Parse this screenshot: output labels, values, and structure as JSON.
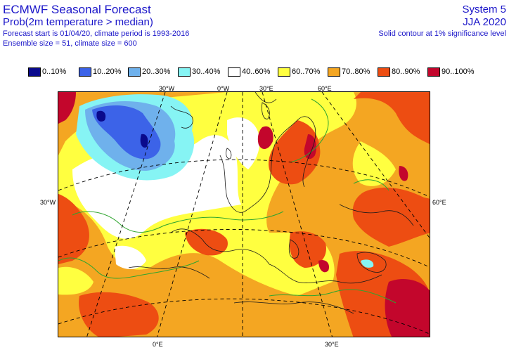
{
  "header": {
    "title": "ECMWF Seasonal Forecast",
    "subtitle": "Prob(2m temperature > median)",
    "forecast_info": "Forecast start is 01/04/20, climate period is 1993-2016",
    "ensemble_info": "Ensemble size = 51, climate size = 600",
    "system": "System 5",
    "season": "JJA 2020",
    "significance_note": "Solid contour at 1% significance level"
  },
  "legend": [
    {
      "label": "0..10%",
      "color": "#0a0a8c"
    },
    {
      "label": "10..20%",
      "color": "#3c63e8"
    },
    {
      "label": "20..30%",
      "color": "#6fb1ec"
    },
    {
      "label": "30..40%",
      "color": "#86f4f4"
    },
    {
      "label": "40..60%",
      "color": "#ffffff"
    },
    {
      "label": "60..70%",
      "color": "#ffff40"
    },
    {
      "label": "70..80%",
      "color": "#f4a622"
    },
    {
      "label": "80..90%",
      "color": "#ed4d12"
    },
    {
      "label": "90..100%",
      "color": "#c3062c"
    }
  ],
  "coords": {
    "top": [
      "30°W",
      "0°W",
      "30°E",
      "60°E"
    ],
    "left": "30°W",
    "right": "60°E",
    "bottom": [
      "0°E",
      "30°E"
    ]
  }
}
